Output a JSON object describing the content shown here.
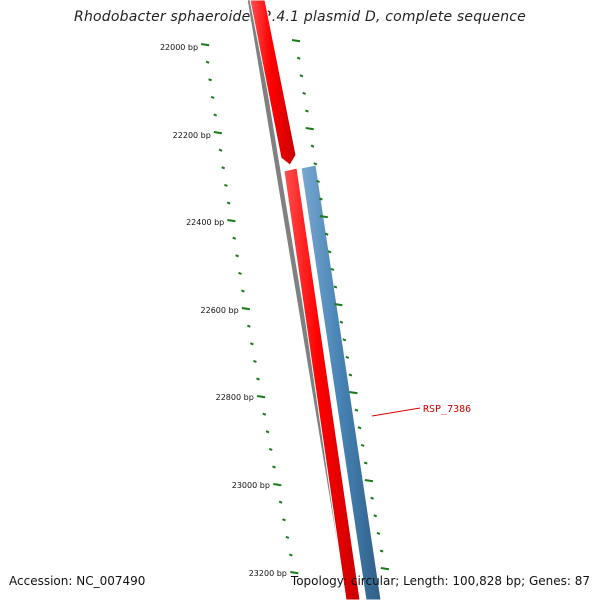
{
  "title": "Rhodobacter sphaeroides 2.4.1 plasmid D, complete sequence",
  "accession_label": "Accession: NC_007490",
  "summary_label": "Topology: circular; Length: 100,828 bp; Genes: 87",
  "ticks": [
    {
      "label": "22000 bp"
    },
    {
      "label": "22200 bp"
    },
    {
      "label": "22400 bp"
    },
    {
      "label": "22600 bp"
    },
    {
      "label": "22800 bp"
    },
    {
      "label": "23000 bp"
    },
    {
      "label": "23200 bp"
    }
  ],
  "genes": [
    {
      "name": "",
      "strand": "+",
      "color": "#ff0000",
      "segment": "upper"
    },
    {
      "name": "",
      "strand": "+",
      "color": "#ff0000",
      "segment": "lower"
    },
    {
      "name": "RSP_7386",
      "strand": "-",
      "color": "#4682b4"
    }
  ],
  "colors": {
    "backbone": "#808080",
    "plus_strand_gene": "#ff0000",
    "minus_strand_gene": "#4682b4",
    "tick": "#1a7a1a",
    "gene_label": "#d40000"
  }
}
